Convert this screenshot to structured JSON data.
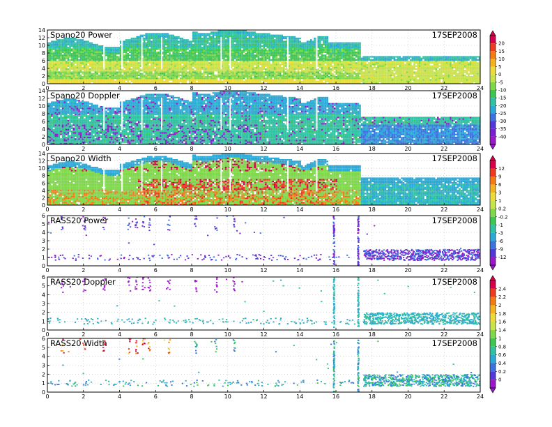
{
  "chart_data": [
    {
      "type": "heatmap",
      "title": "Spano20 Power",
      "date": "17SEP2008",
      "xlim": [
        0,
        24
      ],
      "ylim": [
        0,
        14
      ],
      "x_ticks": [
        "0",
        "2",
        "4",
        "6",
        "8",
        "10",
        "12",
        "14",
        "16",
        "18",
        "20",
        "22",
        "24"
      ],
      "y_ticks": [
        "0",
        "2",
        "4",
        "6",
        "8",
        "10",
        "12",
        "14"
      ],
      "colorbar_group": 0,
      "variant": "profiler_power"
    },
    {
      "type": "heatmap",
      "title": "Spano20 Doppler",
      "date": "17SEP2008",
      "xlim": [
        0,
        24
      ],
      "ylim": [
        0,
        14
      ],
      "x_ticks": [
        "0",
        "2",
        "4",
        "6",
        "8",
        "10",
        "12",
        "14",
        "16",
        "18",
        "20",
        "22",
        "24"
      ],
      "y_ticks": [
        "0",
        "2",
        "4",
        "6",
        "8",
        "10",
        "12",
        "14"
      ],
      "colorbar_group": 0,
      "variant": "profiler_doppler"
    },
    {
      "type": "heatmap",
      "title": "Spano20 Width",
      "date": "17SEP2008",
      "xlim": [
        0,
        24
      ],
      "ylim": [
        0,
        14
      ],
      "x_ticks": [
        "0",
        "2",
        "4",
        "6",
        "8",
        "10",
        "12",
        "14",
        "16",
        "18",
        "20",
        "22",
        "24"
      ],
      "y_ticks": [
        "0",
        "2",
        "4",
        "6",
        "8",
        "10",
        "12",
        "14"
      ],
      "colorbar_group": 1,
      "variant": "profiler_width"
    },
    {
      "type": "scatter",
      "title": "RASS20  Power",
      "date": "17SEP2008",
      "xlim": [
        0,
        24
      ],
      "ylim": [
        0,
        6
      ],
      "x_ticks": [
        "0",
        "2",
        "4",
        "6",
        "8",
        "10",
        "12",
        "14",
        "16",
        "18",
        "20",
        "22",
        "24"
      ],
      "y_ticks": [
        "0",
        "1",
        "2",
        "3",
        "4",
        "5",
        "6"
      ],
      "colorbar_group": 1,
      "variant": "rass_power"
    },
    {
      "type": "scatter",
      "title": "RASS20  Doppler",
      "date": "17SEP2008",
      "xlim": [
        0,
        24
      ],
      "ylim": [
        0,
        6
      ],
      "x_ticks": [
        "0",
        "2",
        "4",
        "6",
        "8",
        "10",
        "12",
        "14",
        "16",
        "18",
        "20",
        "22",
        "24"
      ],
      "y_ticks": [
        "0",
        "1",
        "2",
        "3",
        "4",
        "5",
        "6"
      ],
      "colorbar_group": 2,
      "variant": "rass_doppler"
    },
    {
      "type": "scatter",
      "title": "RASS20  Width",
      "date": "17SEP2008",
      "xlim": [
        0,
        24
      ],
      "ylim": [
        0,
        6
      ],
      "x_ticks": [
        "0",
        "2",
        "4",
        "6",
        "8",
        "10",
        "12",
        "14",
        "16",
        "18",
        "20",
        "22",
        "24"
      ],
      "y_ticks": [
        "0",
        "1",
        "2",
        "3",
        "4",
        "5",
        "6"
      ],
      "colorbar_group": 2,
      "variant": "rass_width"
    }
  ],
  "colorbars": [
    {
      "labels": [
        "20",
        "15",
        "10",
        "5",
        "0",
        "-5",
        "-10",
        "-15",
        "-20",
        "-25",
        "-30",
        "-35",
        "-40"
      ],
      "colors": [
        "#d8004a",
        "#f03a1e",
        "#f57a14",
        "#f5b21e",
        "#ecd93a",
        "#c6e34a",
        "#7ed84a",
        "#3cc850",
        "#2ec2a2",
        "#2aa8d6",
        "#3a72e0",
        "#5238da",
        "#7a1fd0",
        "#9a18c8"
      ]
    },
    {
      "labels": [
        "12",
        "9",
        "6",
        "3",
        "1",
        "0.2",
        "-0.2",
        "-1",
        "-3",
        "-6",
        "-9",
        "-12"
      ],
      "colors": [
        "#d8004a",
        "#f03a1e",
        "#f57a14",
        "#f5b21e",
        "#ecd93a",
        "#c6e34a",
        "#7ed84a",
        "#3cc850",
        "#2ec2a2",
        "#2aa8d6",
        "#3a72e0",
        "#5238da",
        "#9a18c8"
      ]
    },
    {
      "labels": [
        "2.4",
        "2.2",
        "2",
        "1.8",
        "1.6",
        "1.4",
        "1",
        "0.8",
        "0.6",
        "0.4",
        "0.2",
        "0"
      ],
      "colors": [
        "#d8004a",
        "#f03a1e",
        "#f57a14",
        "#f5b21e",
        "#ecd93a",
        "#c6e34a",
        "#7ed84a",
        "#3cc850",
        "#2ec2a2",
        "#2aa8d6",
        "#3a72e0",
        "#5238da",
        "#9a18c8"
      ]
    }
  ]
}
